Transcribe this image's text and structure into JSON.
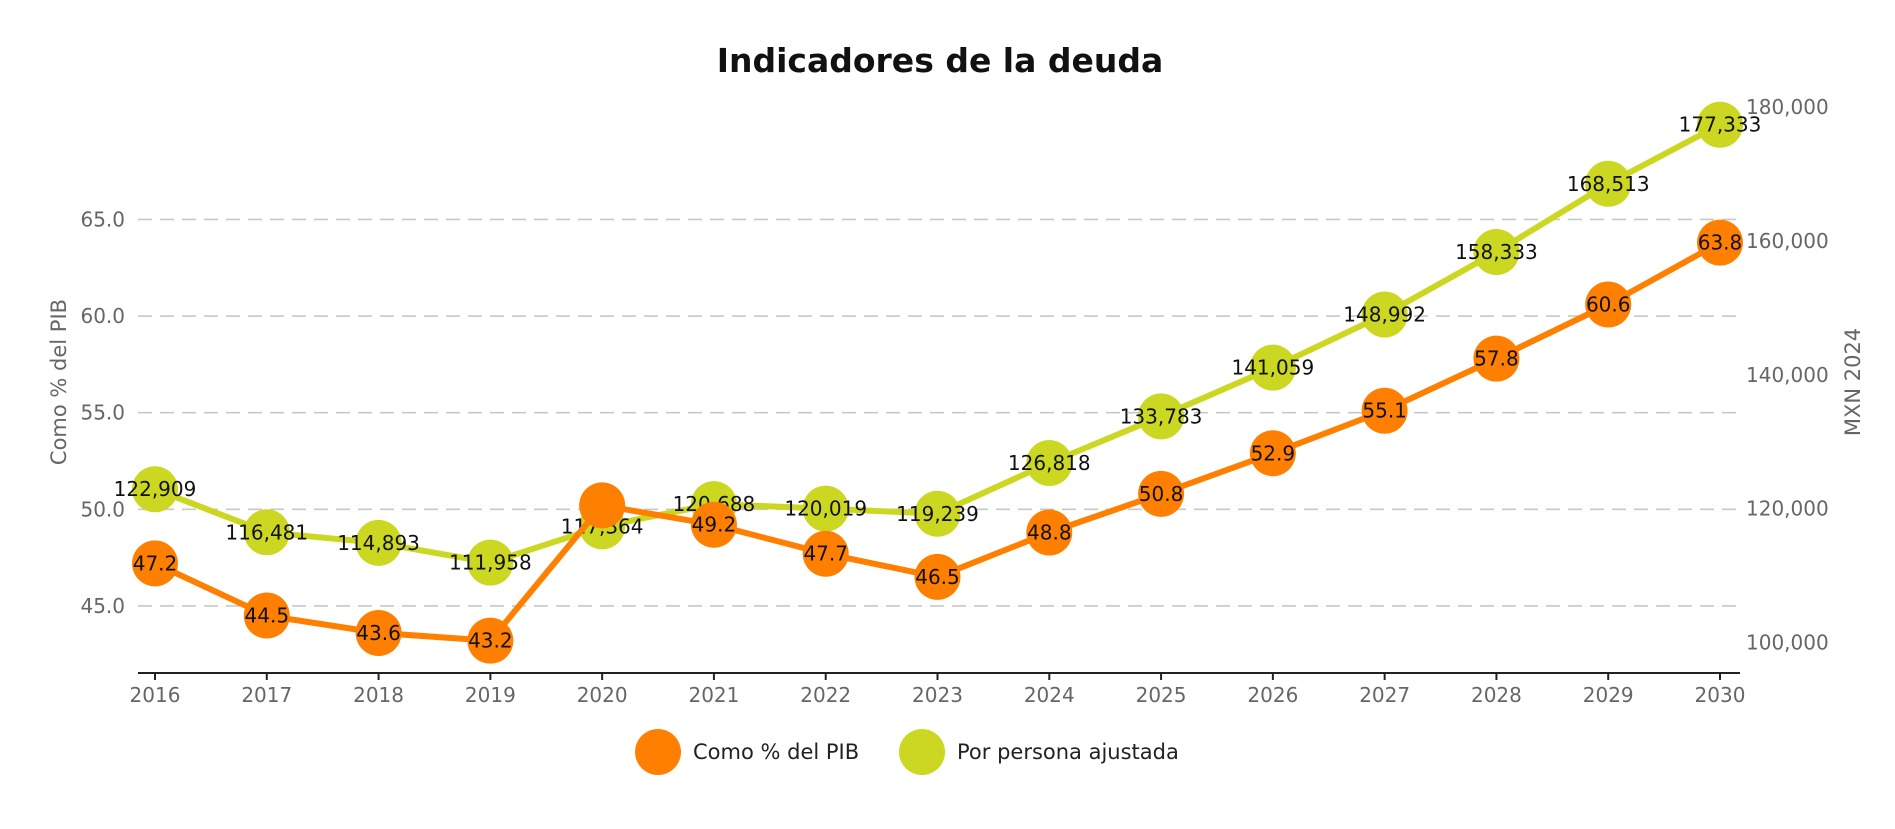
{
  "chart_data": {
    "type": "line",
    "title": "Indicadores de la deuda",
    "x": [
      "2016",
      "2017",
      "2018",
      "2019",
      "2020",
      "2021",
      "2022",
      "2023",
      "2024",
      "2025",
      "2026",
      "2027",
      "2028",
      "2029",
      "2030"
    ],
    "y_left": {
      "label": "Como % del PIB",
      "range": [
        42.2,
        71.7
      ],
      "ticks": [
        "45.0",
        "50.0",
        "55.0",
        "60.0",
        "65.0"
      ],
      "grid": true
    },
    "y_right": {
      "label": "MXN 2024",
      "range": [
        97410,
        182520
      ],
      "ticks": [
        "100,000",
        "120,000",
        "140,000",
        "160,000",
        "180,000"
      ]
    },
    "series": [
      {
        "name": "Como % del PIB",
        "axis": "left",
        "color": "#ff8000",
        "values": [
          47.2,
          44.5,
          43.6,
          43.2,
          50.2,
          49.2,
          47.7,
          46.5,
          48.8,
          50.8,
          52.9,
          55.1,
          57.8,
          60.6,
          63.8
        ],
        "labels": [
          "47.2",
          "44.5",
          "43.6",
          "43.2",
          "",
          "49.2",
          "47.7",
          "46.5",
          "48.8",
          "50.8",
          "52.9",
          "55.1",
          "57.8",
          "60.6",
          "63.8"
        ]
      },
      {
        "name": "Por persona ajustada",
        "axis": "right",
        "color": "#ccd721",
        "values": [
          122909,
          116481,
          114893,
          111958,
          117364,
          120688,
          120019,
          119239,
          126818,
          133783,
          141059,
          148992,
          158333,
          168513,
          177333
        ],
        "labels": [
          "122,909",
          "116,481",
          "114,893",
          "111,958",
          "117,364",
          "120,688",
          "120,019",
          "119,239",
          "126,818",
          "133,783",
          "141,059",
          "148,992",
          "158,333",
          "168,513",
          "177,333"
        ]
      }
    ],
    "legend": {
      "position": "bottom-center"
    }
  }
}
